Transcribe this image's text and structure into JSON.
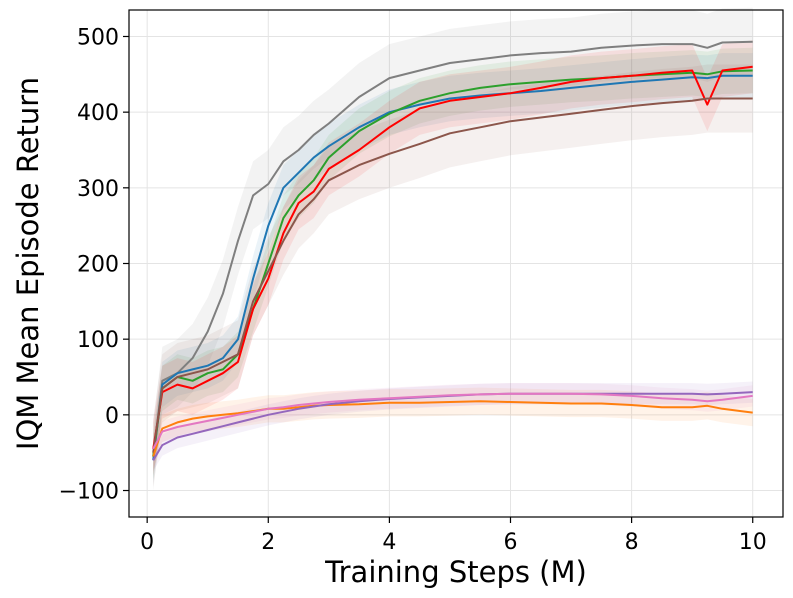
{
  "chart_data": {
    "type": "line",
    "title": "",
    "xlabel": "Training Steps (M)",
    "ylabel": "IQM Mean Episode Return",
    "xlim": [
      -0.3,
      10.5
    ],
    "ylim": [
      -135,
      535
    ],
    "xticks": [
      0,
      2,
      4,
      6,
      8,
      10
    ],
    "xtick_labels": [
      "0",
      "2",
      "4",
      "6",
      "8",
      "10"
    ],
    "yticks": [
      -100,
      0,
      100,
      200,
      300,
      400,
      500
    ],
    "ytick_labels": [
      "−100",
      "0",
      "100",
      "200",
      "300",
      "400",
      "500"
    ],
    "grid": true,
    "legend": "none",
    "x": [
      0.1,
      0.25,
      0.5,
      0.75,
      1.0,
      1.25,
      1.5,
      1.75,
      2.0,
      2.25,
      2.5,
      2.75,
      3.0,
      3.5,
      4.0,
      4.5,
      5.0,
      5.5,
      6.0,
      6.5,
      7.0,
      7.5,
      8.0,
      8.5,
      9.0,
      9.25,
      9.5,
      10.0
    ],
    "series": [
      {
        "name": "gray",
        "color": "#7f7f7f",
        "band": 45,
        "values": [
          -55,
          45,
          55,
          75,
          110,
          160,
          230,
          290,
          305,
          335,
          350,
          370,
          385,
          420,
          445,
          455,
          465,
          470,
          475,
          478,
          480,
          485,
          488,
          490,
          490,
          485,
          492,
          493
        ]
      },
      {
        "name": "blue",
        "color": "#1f77b4",
        "band": 30,
        "values": [
          -60,
          40,
          55,
          60,
          65,
          75,
          100,
          180,
          250,
          300,
          320,
          340,
          355,
          380,
          400,
          410,
          418,
          422,
          425,
          428,
          432,
          436,
          440,
          443,
          446,
          445,
          448,
          448
        ]
      },
      {
        "name": "green",
        "color": "#2ca02c",
        "band": 30,
        "values": [
          -55,
          35,
          50,
          45,
          55,
          60,
          80,
          140,
          200,
          260,
          290,
          310,
          340,
          375,
          398,
          415,
          425,
          432,
          437,
          440,
          443,
          445,
          448,
          450,
          452,
          450,
          454,
          455
        ]
      },
      {
        "name": "red",
        "color": "#ff0000",
        "band": 35,
        "values": [
          -45,
          30,
          40,
          35,
          45,
          55,
          70,
          140,
          180,
          240,
          280,
          295,
          325,
          350,
          380,
          405,
          415,
          420,
          425,
          432,
          440,
          445,
          448,
          452,
          455,
          410,
          455,
          460
        ]
      },
      {
        "name": "brown",
        "color": "#8c564b",
        "band": 45,
        "values": [
          -50,
          35,
          50,
          55,
          60,
          70,
          80,
          150,
          190,
          230,
          265,
          285,
          310,
          330,
          345,
          358,
          372,
          380,
          388,
          393,
          398,
          403,
          408,
          412,
          415,
          418,
          418,
          418
        ]
      },
      {
        "name": "orange",
        "color": "#ff7f0e",
        "band": 18,
        "values": [
          -55,
          -18,
          -10,
          -5,
          -2,
          0,
          2,
          5,
          8,
          8,
          10,
          12,
          13,
          14,
          16,
          16,
          17,
          18,
          17,
          16,
          15,
          15,
          13,
          10,
          10,
          12,
          8,
          3
        ]
      },
      {
        "name": "purple",
        "color": "#9467bd",
        "band": 14,
        "values": [
          -60,
          -40,
          -30,
          -25,
          -20,
          -15,
          -10,
          -5,
          0,
          4,
          8,
          11,
          14,
          18,
          21,
          23,
          25,
          27,
          28,
          28,
          28,
          28,
          28,
          28,
          28,
          27,
          28,
          30
        ]
      },
      {
        "name": "pink",
        "color": "#e377c2",
        "band": 14,
        "values": [
          -45,
          -22,
          -16,
          -12,
          -8,
          -4,
          0,
          4,
          8,
          10,
          13,
          15,
          17,
          20,
          22,
          24,
          26,
          27,
          28,
          28,
          28,
          27,
          25,
          22,
          20,
          18,
          20,
          25
        ]
      }
    ]
  }
}
